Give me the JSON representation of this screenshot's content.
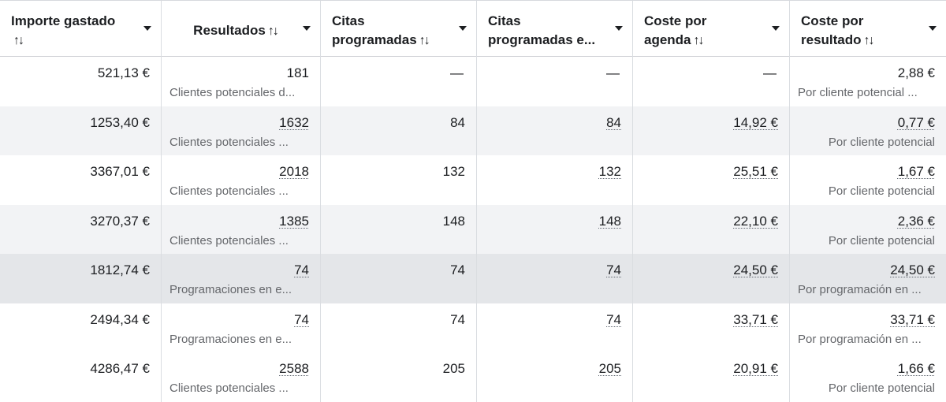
{
  "headers": [
    {
      "line1": "Importe gastado",
      "line2": "",
      "sort": "↑↓"
    },
    {
      "line1": "Resultados",
      "line2": "",
      "sort": "↑↓"
    },
    {
      "line1": "Citas",
      "line2": "programadas",
      "sort": "↑↓"
    },
    {
      "line1": "Citas",
      "line2": "programadas e...",
      "sort": ""
    },
    {
      "line1": "Coste por",
      "line2": "agenda",
      "sort": "↑↓"
    },
    {
      "line1": "Coste por",
      "line2": "resultado",
      "sort": "↑↓"
    }
  ],
  "rows": [
    {
      "importe": "521,13 €",
      "resultados": "181",
      "resultados_sub": "Clientes potenciales d...",
      "citas": "—",
      "citas_e": "—",
      "coste_agenda": "—",
      "coste_resultado": "2,88 €",
      "coste_resultado_sub": "Por cliente potencial ..."
    },
    {
      "importe": "1253,40 €",
      "resultados": "1632",
      "resultados_sub": "Clientes potenciales ...",
      "citas": "84",
      "citas_e": "84",
      "coste_agenda": "14,92 €",
      "coste_resultado": "0,77 €",
      "coste_resultado_sub": "Por cliente potencial"
    },
    {
      "importe": "3367,01 €",
      "resultados": "2018",
      "resultados_sub": "Clientes potenciales ...",
      "citas": "132",
      "citas_e": "132",
      "coste_agenda": "25,51 €",
      "coste_resultado": "1,67 €",
      "coste_resultado_sub": "Por cliente potencial"
    },
    {
      "importe": "3270,37 €",
      "resultados": "1385",
      "resultados_sub": "Clientes potenciales ...",
      "citas": "148",
      "citas_e": "148",
      "coste_agenda": "22,10 €",
      "coste_resultado": "2,36 €",
      "coste_resultado_sub": "Por cliente potencial"
    },
    {
      "importe": "1812,74 €",
      "resultados": "74",
      "resultados_sub": "Programaciones en e...",
      "citas": "74",
      "citas_e": "74",
      "coste_agenda": "24,50 €",
      "coste_resultado": "24,50 €",
      "coste_resultado_sub": "Por programación en ..."
    },
    {
      "importe": "2494,34 €",
      "resultados": "74",
      "resultados_sub": "Programaciones en e...",
      "citas": "74",
      "citas_e": "74",
      "coste_agenda": "33,71 €",
      "coste_resultado": "33,71 €",
      "coste_resultado_sub": "Por programación en ..."
    },
    {
      "importe": "4286,47 €",
      "resultados": "2588",
      "resultados_sub": "Clientes potenciales ...",
      "citas": "205",
      "citas_e": "205",
      "coste_agenda": "20,91 €",
      "coste_resultado": "1,66 €",
      "coste_resultado_sub": "Por cliente potencial"
    }
  ]
}
